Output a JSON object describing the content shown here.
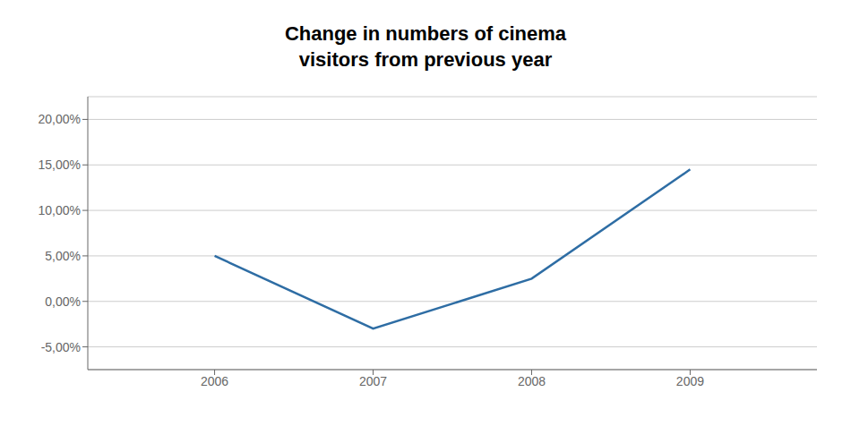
{
  "chart_data": {
    "type": "line",
    "title": "Change in numbers of cinema\nvisitors from previous year",
    "x": [
      2006,
      2007,
      2008,
      2009
    ],
    "values": [
      0.05,
      -0.03,
      0.025,
      0.145
    ],
    "color": "#2e6da4",
    "xlim": [
      2005.2,
      2009.8
    ],
    "xticks": [
      2006,
      2007,
      2008,
      2009
    ],
    "ylim": [
      -0.075,
      0.225
    ],
    "yticks": [
      {
        "value": -0.05,
        "label": "-5,00%"
      },
      {
        "value": 0.0,
        "label": "0,00%"
      },
      {
        "value": 0.05,
        "label": "5,00%"
      },
      {
        "value": 0.1,
        "label": "10,00%"
      },
      {
        "value": 0.15,
        "label": "15,00%"
      },
      {
        "value": 0.2,
        "label": "20,00%"
      }
    ],
    "grid": "y"
  }
}
